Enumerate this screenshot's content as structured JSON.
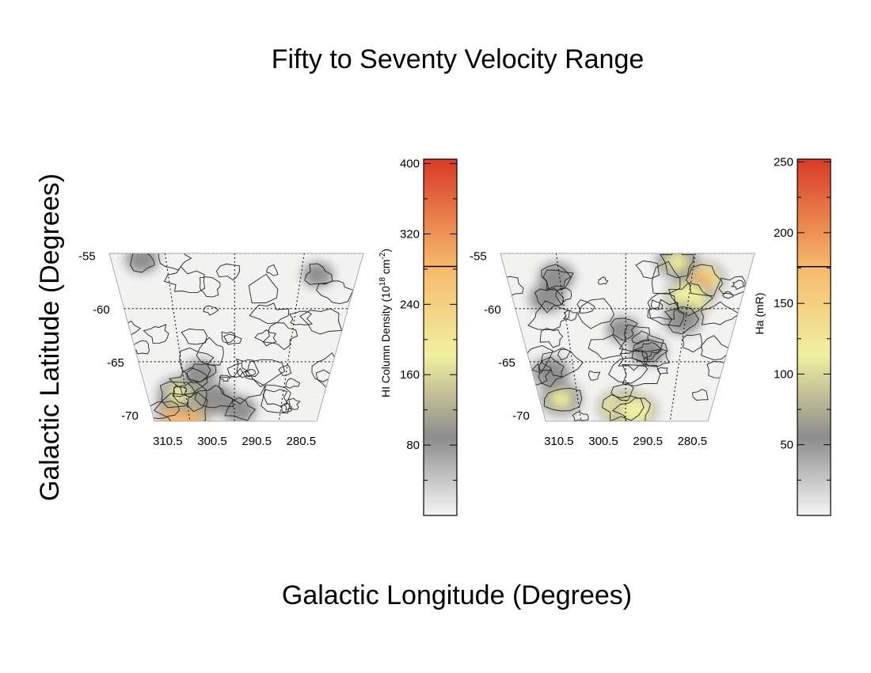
{
  "figure": {
    "title": "Fifty to Seventy Velocity Range",
    "ylabel": "Galactic Latitude (Degrees)",
    "xlabel": "Galactic Longitude (Degrees)"
  },
  "chart_data": [
    {
      "type": "heatmap",
      "panel": "left",
      "x_ticks": [
        "310.5",
        "300.5",
        "290.5",
        "280.5"
      ],
      "y_ticks": [
        "-55",
        "-60",
        "-65",
        "-70"
      ],
      "colorbar": {
        "label_main": "HI Column Density (10",
        "label_sup1": "18",
        "label_mid": " cm",
        "label_sup2": "-2",
        "label_end": ")",
        "range": [
          0,
          405
        ],
        "ticks": [
          {
            "value": 80,
            "label": "80"
          },
          {
            "value": 160,
            "label": "160"
          },
          {
            "value": 240,
            "label": "240"
          },
          {
            "value": 320,
            "label": "320"
          },
          {
            "value": 400,
            "label": "400"
          }
        ],
        "line_value": 283
      },
      "colors": [
        "#f6f6f6",
        "#8c8c8c",
        "#f0f0a0",
        "#f7b96a",
        "#d83a25"
      ],
      "blobs": [
        {
          "lon": 306.5,
          "lat": -69.6,
          "level": 0.85
        },
        {
          "lon": 304.0,
          "lat": -68.2,
          "level": 0.5
        },
        {
          "lon": 307.0,
          "lat": -68.0,
          "level": 0.45
        },
        {
          "lon": 299.5,
          "lat": -68.5,
          "level": 0.35
        },
        {
          "lon": 294.5,
          "lat": -69.5,
          "level": 0.25
        },
        {
          "lon": 302.0,
          "lat": -66.0,
          "level": 0.2
        },
        {
          "lon": 309.0,
          "lat": -55.4,
          "level": 0.2
        },
        {
          "lon": 283.0,
          "lat": -56.8,
          "level": 0.15
        }
      ]
    },
    {
      "type": "heatmap",
      "panel": "right",
      "x_ticks": [
        "310.5",
        "300.5",
        "290.5",
        "280.5"
      ],
      "y_ticks": [
        "-55",
        "-60",
        "-65",
        "-70"
      ],
      "colorbar": {
        "label_main": "Ha (mR)",
        "range": [
          0,
          252
        ],
        "ticks": [
          {
            "value": 50,
            "label": "50"
          },
          {
            "value": 100,
            "label": "100"
          },
          {
            "value": 150,
            "label": "150"
          },
          {
            "value": 200,
            "label": "200"
          },
          {
            "value": 250,
            "label": "250"
          }
        ],
        "line_value": 176
      },
      "colors": [
        "#f6f6f6",
        "#8c8c8c",
        "#f0f0a0",
        "#f7b96a",
        "#d83a25"
      ],
      "blobs": [
        {
          "lon": 284.0,
          "lat": -57.3,
          "level": 0.65
        },
        {
          "lon": 285.5,
          "lat": -59.0,
          "level": 0.6
        },
        {
          "lon": 288.0,
          "lat": -55.6,
          "level": 0.45
        },
        {
          "lon": 286.0,
          "lat": -61.0,
          "level": 0.35
        },
        {
          "lon": 296.5,
          "lat": -69.3,
          "level": 0.55
        },
        {
          "lon": 293.5,
          "lat": -69.6,
          "level": 0.5
        },
        {
          "lon": 309.0,
          "lat": -68.5,
          "level": 0.45
        },
        {
          "lon": 310.0,
          "lat": -66.0,
          "level": 0.35
        },
        {
          "lon": 308.0,
          "lat": -59.0,
          "level": 0.3
        },
        {
          "lon": 306.0,
          "lat": -57.0,
          "level": 0.3
        },
        {
          "lon": 291.5,
          "lat": -64.0,
          "level": 0.3
        },
        {
          "lon": 296.0,
          "lat": -62.0,
          "level": 0.2
        }
      ]
    }
  ]
}
